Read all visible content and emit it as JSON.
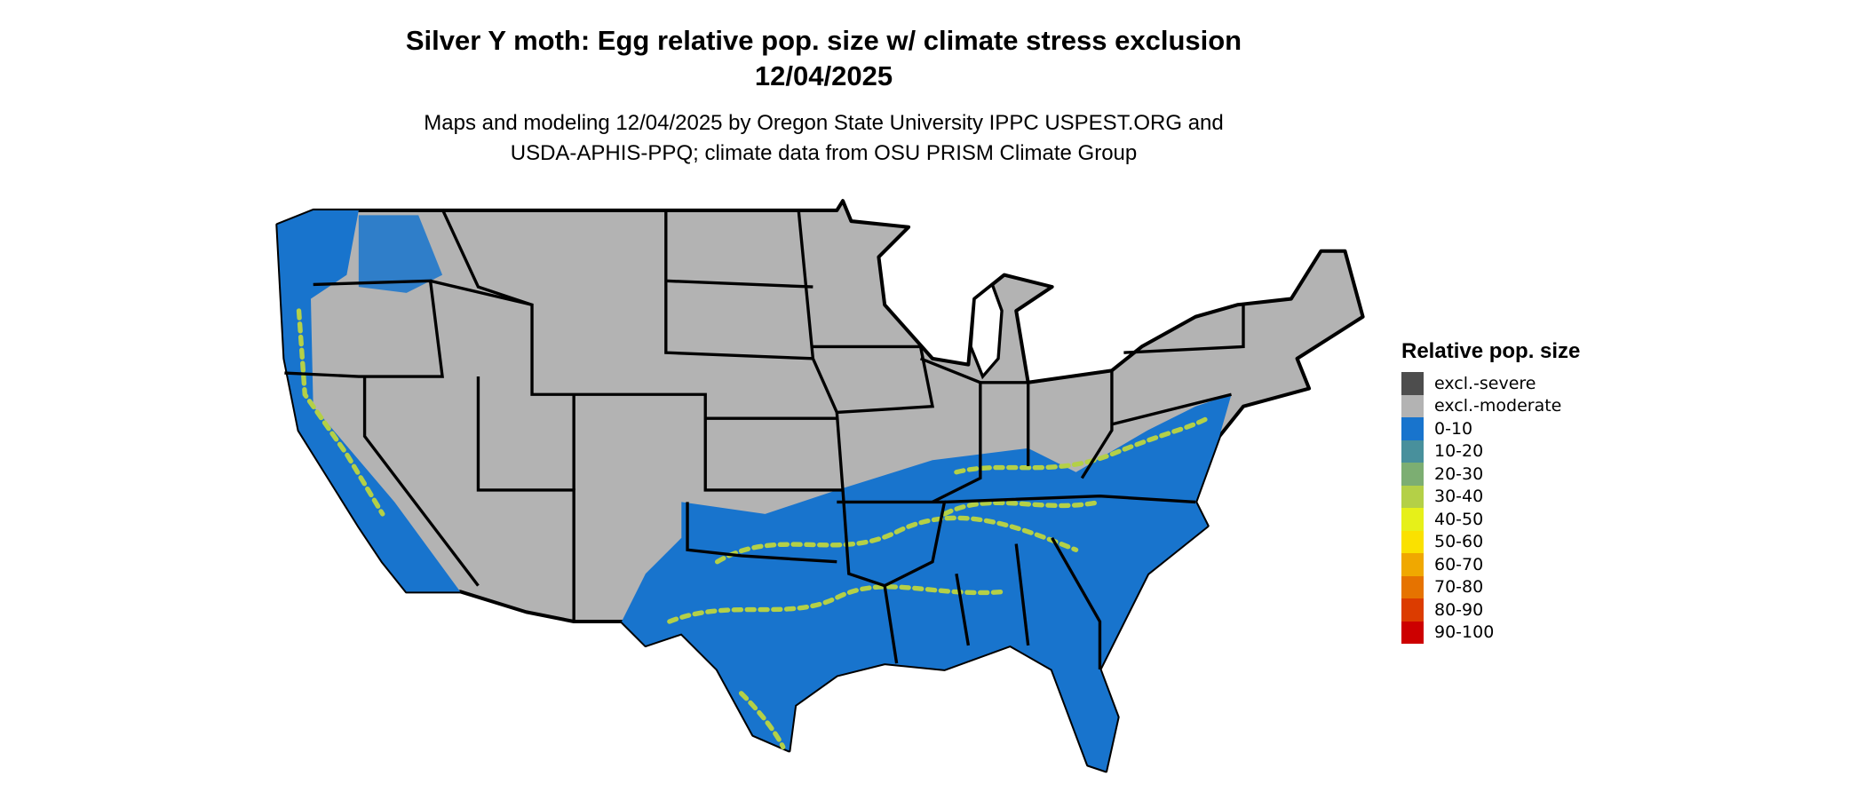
{
  "title": {
    "line1": "Silver Y moth: Egg relative pop. size w/ climate stress exclusion",
    "line2": "12/04/2025"
  },
  "subtitle": {
    "line1": "Maps and modeling 12/04/2025 by Oregon State University IPPC USPEST.ORG and",
    "line2": "USDA-APHIS-PPQ; climate data from OSU PRISM Climate Group"
  },
  "legend": {
    "title": "Relative pop. size",
    "items": [
      {
        "label": "excl.-severe",
        "color": "#4d4d4d"
      },
      {
        "label": "excl.-moderate",
        "color": "#b3b3b3"
      },
      {
        "label": "0-10",
        "color": "#1874cd"
      },
      {
        "label": "10-20",
        "color": "#48909c"
      },
      {
        "label": "20-30",
        "color": "#7cae72"
      },
      {
        "label": "30-40",
        "color": "#b4d047"
      },
      {
        "label": "40-50",
        "color": "#e6f019"
      },
      {
        "label": "50-60",
        "color": "#fae100"
      },
      {
        "label": "60-70",
        "color": "#f0a800"
      },
      {
        "label": "70-80",
        "color": "#e67300"
      },
      {
        "label": "80-90",
        "color": "#dc3c00"
      },
      {
        "label": "90-100",
        "color": "#cd0000"
      }
    ]
  }
}
